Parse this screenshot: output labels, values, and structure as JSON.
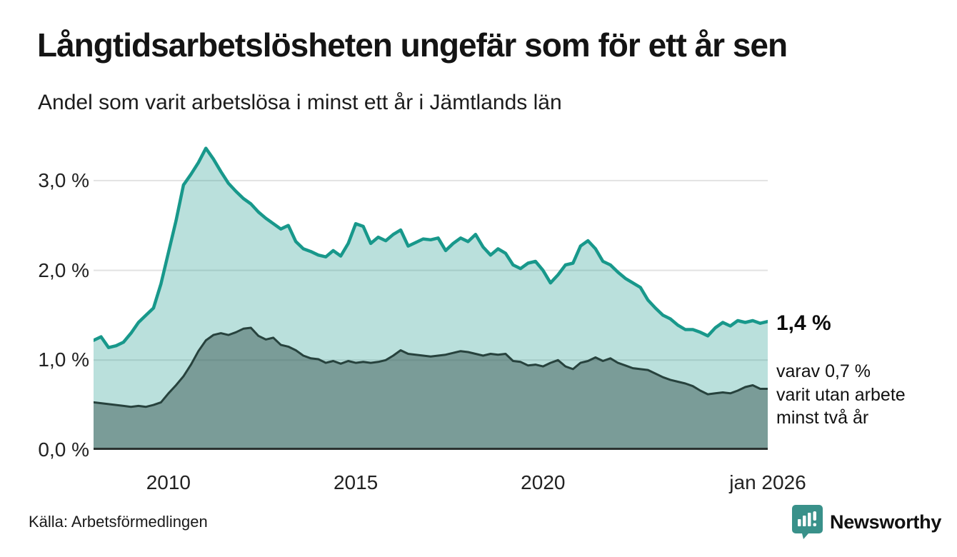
{
  "header": {
    "title": "Långtidsarbetslösheten ungefär som för ett år sen",
    "subtitle": "Andel som varit arbetslösa i minst ett år i Jämtlands län"
  },
  "footer": {
    "source": "Källa: Arbetsförmedlingen",
    "logo_text": "Newsworthy",
    "logo_color": "#39918a"
  },
  "annotations": {
    "end_value_label": "1,4 %",
    "secondary_note_lines": [
      "varav 0,7 %",
      "varit utan arbete",
      "minst två år"
    ]
  },
  "chart_data": {
    "type": "area",
    "title": "Långtidsarbetslösheten ungefär som för ett år sen",
    "subtitle": "Andel som varit arbetslösa i minst ett år i Jämtlands län",
    "x_domain": [
      2008,
      2026
    ],
    "y_domain": [
      0,
      3.5
    ],
    "grid": "horizontal-only",
    "legend_position": "none",
    "colors": {
      "line_primary": "#18988b",
      "fill_primary": "rgba(25,152,139,0.30)",
      "line_secondary": "#27423d",
      "fill_secondary": "rgba(45,74,69,0.45)",
      "gridline": "#e2e2e2",
      "axis": "#2b3331"
    },
    "y_ticks": [
      {
        "value": 0.0,
        "label": "0,0 %"
      },
      {
        "value": 1.0,
        "label": "1,0 %"
      },
      {
        "value": 2.0,
        "label": "2,0 %"
      },
      {
        "value": 3.0,
        "label": "3,0 %"
      }
    ],
    "x_ticks": [
      {
        "value": 2010,
        "label": "2010"
      },
      {
        "value": 2015,
        "label": "2015"
      },
      {
        "value": 2020,
        "label": "2020"
      },
      {
        "value": 2026,
        "label": "jan 2026"
      }
    ],
    "x": [
      2008.0,
      2008.2,
      2008.4,
      2008.6,
      2008.8,
      2009.0,
      2009.2,
      2009.4,
      2009.6,
      2009.8,
      2010.0,
      2010.2,
      2010.4,
      2010.6,
      2010.8,
      2011.0,
      2011.2,
      2011.4,
      2011.6,
      2011.8,
      2012.0,
      2012.2,
      2012.4,
      2012.6,
      2012.8,
      2013.0,
      2013.2,
      2013.4,
      2013.6,
      2013.8,
      2014.0,
      2014.2,
      2014.4,
      2014.6,
      2014.8,
      2015.0,
      2015.2,
      2015.4,
      2015.6,
      2015.8,
      2016.0,
      2016.2,
      2016.4,
      2016.6,
      2016.8,
      2017.0,
      2017.2,
      2017.4,
      2017.6,
      2017.8,
      2018.0,
      2018.2,
      2018.4,
      2018.6,
      2018.8,
      2019.0,
      2019.2,
      2019.4,
      2019.6,
      2019.8,
      2020.0,
      2020.2,
      2020.4,
      2020.6,
      2020.8,
      2021.0,
      2021.2,
      2021.4,
      2021.6,
      2021.8,
      2022.0,
      2022.2,
      2022.4,
      2022.6,
      2022.8,
      2023.0,
      2023.2,
      2023.4,
      2023.6,
      2023.8,
      2024.0,
      2024.2,
      2024.4,
      2024.6,
      2024.8,
      2025.0,
      2025.2,
      2025.4,
      2025.6,
      2025.8,
      2026.0
    ],
    "series": [
      {
        "name": "Andel arbetslösa minst ett år",
        "end_value": "1,4 %",
        "values": [
          1.22,
          1.26,
          1.14,
          1.16,
          1.2,
          1.3,
          1.42,
          1.5,
          1.58,
          1.85,
          2.2,
          2.55,
          2.95,
          3.07,
          3.2,
          3.36,
          3.24,
          3.1,
          2.97,
          2.88,
          2.8,
          2.74,
          2.65,
          2.58,
          2.52,
          2.46,
          2.5,
          2.32,
          2.24,
          2.21,
          2.17,
          2.15,
          2.22,
          2.16,
          2.3,
          2.52,
          2.49,
          2.3,
          2.37,
          2.33,
          2.4,
          2.45,
          2.27,
          2.31,
          2.35,
          2.34,
          2.36,
          2.22,
          2.3,
          2.36,
          2.32,
          2.4,
          2.26,
          2.17,
          2.24,
          2.19,
          2.06,
          2.02,
          2.08,
          2.1,
          2.0,
          1.86,
          1.95,
          2.06,
          2.08,
          2.27,
          2.33,
          2.24,
          2.1,
          2.06,
          1.98,
          1.91,
          1.86,
          1.81,
          1.67,
          1.58,
          1.5,
          1.46,
          1.39,
          1.34,
          1.34,
          1.31,
          1.27,
          1.36,
          1.42,
          1.38,
          1.44,
          1.42,
          1.44,
          1.41,
          1.43
        ]
      },
      {
        "name": "Andel arbetslösa minst två år",
        "end_value": "0,7 %",
        "values": [
          0.53,
          0.52,
          0.51,
          0.5,
          0.49,
          0.48,
          0.49,
          0.48,
          0.5,
          0.53,
          0.63,
          0.72,
          0.82,
          0.95,
          1.1,
          1.22,
          1.28,
          1.3,
          1.28,
          1.31,
          1.35,
          1.36,
          1.27,
          1.23,
          1.25,
          1.17,
          1.15,
          1.11,
          1.05,
          1.02,
          1.01,
          0.97,
          0.99,
          0.96,
          0.99,
          0.97,
          0.98,
          0.97,
          0.98,
          1.0,
          1.05,
          1.11,
          1.07,
          1.06,
          1.05,
          1.04,
          1.05,
          1.06,
          1.08,
          1.1,
          1.09,
          1.07,
          1.05,
          1.07,
          1.06,
          1.07,
          0.99,
          0.98,
          0.94,
          0.95,
          0.93,
          0.97,
          1.0,
          0.93,
          0.9,
          0.97,
          0.99,
          1.03,
          0.99,
          1.02,
          0.97,
          0.94,
          0.91,
          0.9,
          0.89,
          0.85,
          0.81,
          0.78,
          0.76,
          0.74,
          0.71,
          0.66,
          0.62,
          0.63,
          0.64,
          0.63,
          0.66,
          0.7,
          0.72,
          0.68,
          0.68
        ]
      }
    ]
  }
}
